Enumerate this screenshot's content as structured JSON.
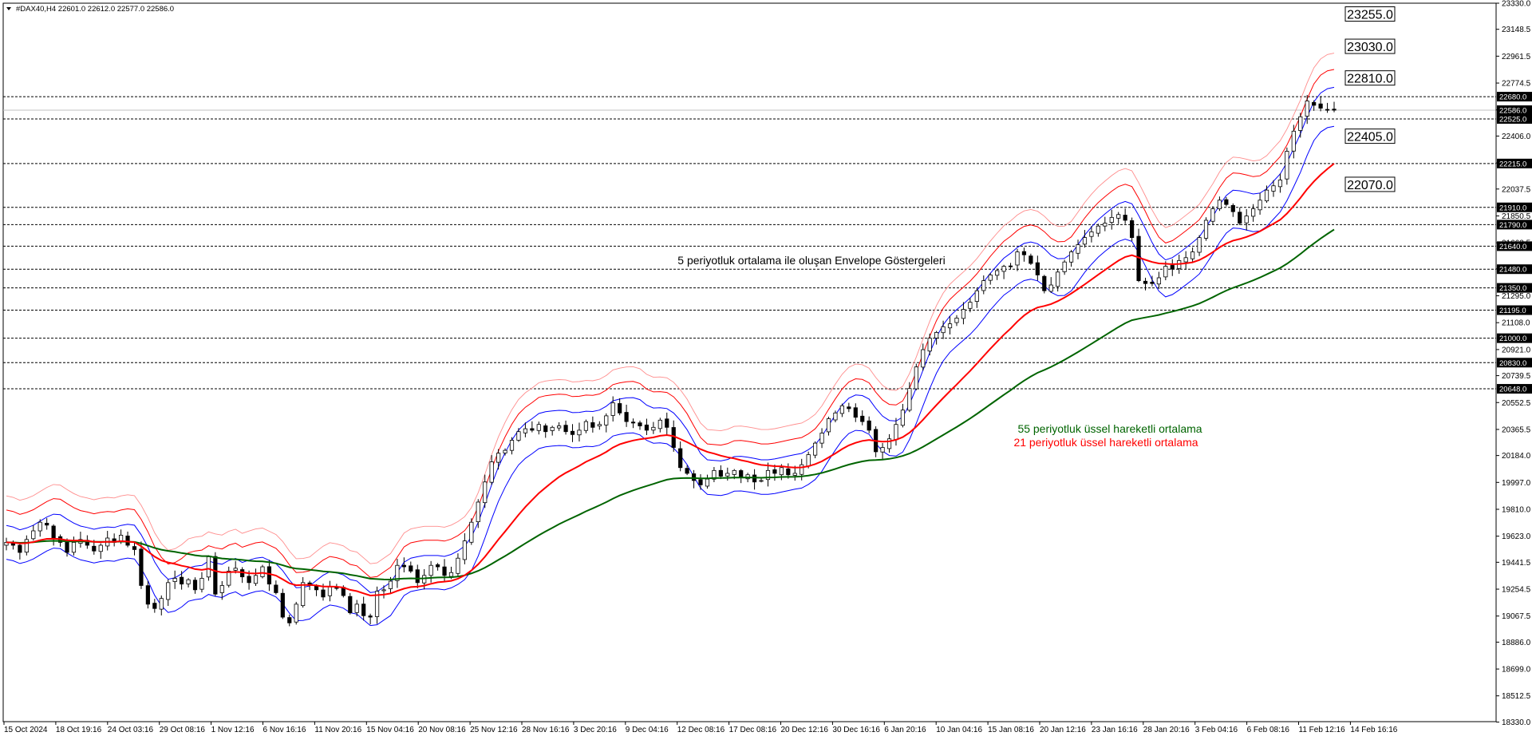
{
  "header": {
    "symbol_line": "#DAX40,H4  22601.0 22612.0 22577.0 22586.0",
    "arrow_icon": "triangle-down-icon"
  },
  "annotations": {
    "envelope": "5 periyotluk ortalama ile oluşan Envelope Göstergeleri",
    "ema55": "55 periyotluk üssel hareketli ortalama",
    "ema21": "21 periyotluk üssel hareketli ortalama"
  },
  "chart_data": {
    "type": "candlestick",
    "symbol": "#DAX40",
    "timeframe": "H4",
    "ohlc_last": {
      "open": 22601.0,
      "high": 22612.0,
      "low": 22577.0,
      "close": 22586.0
    },
    "ylim": [
      18333.0,
      23330.0
    ],
    "y_ticks": [
      23330.0,
      23148.5,
      22961.5,
      22774.5,
      22587.5,
      22406.0,
      22219.0,
      22037.5,
      21850.5,
      21663.5,
      21482.0,
      21295.0,
      21108.0,
      20921.0,
      20739.5,
      20552.5,
      20365.5,
      20184.0,
      19997.0,
      19810.0,
      19623.0,
      19441.5,
      19254.5,
      19067.5,
      18886.0,
      18699.0,
      18512.5,
      18330.0
    ],
    "x_labels": [
      "15 Oct 2024",
      "18 Oct 19:16",
      "24 Oct 03:16",
      "29 Oct 08:16",
      "1 Nov 12:16",
      "6 Nov 16:16",
      "11 Nov 20:16",
      "15 Nov 04:16",
      "20 Nov 08:16",
      "25 Nov 12:16",
      "28 Nov 16:16",
      "3 Dec 20:16",
      "9 Dec 04:16",
      "12 Dec 08:16",
      "17 Dec 08:16",
      "20 Dec 12:16",
      "30 Dec 16:16",
      "6 Jan 20:16",
      "10 Jan 04:16",
      "15 Jan 08:16",
      "20 Jan 12:16",
      "23 Jan 16:16",
      "28 Jan 20:16",
      "3 Feb 04:16",
      "6 Feb 08:16",
      "11 Feb 12:16",
      "14 Feb 16:16"
    ],
    "horizontal_levels": [
      22680.0,
      22525.0,
      22215.0,
      21910.0,
      21790.0,
      21640.0,
      21480.0,
      21350.0,
      21195.0,
      21000.0,
      20830.0,
      20648.0
    ],
    "current_price": 22586.0,
    "labelled_levels": [
      {
        "label": "23255.0",
        "value": 23255.0,
        "series": "upper_envelope_3"
      },
      {
        "label": "23030.0",
        "value": 23030.0,
        "series": "upper_envelope_2"
      },
      {
        "label": "22810.0",
        "value": 22810.0,
        "series": "upper_envelope_1"
      },
      {
        "label": "22405.0",
        "value": 22405.0,
        "series": "ema21"
      },
      {
        "label": "22070.0",
        "value": 22070.0,
        "series": "ema55"
      }
    ],
    "closes": [
      19580,
      19560,
      19510,
      19600,
      19660,
      19720,
      19700,
      19610,
      19580,
      19510,
      19580,
      19600,
      19560,
      19520,
      19560,
      19610,
      19580,
      19630,
      19560,
      19530,
      19280,
      19150,
      19120,
      19190,
      19300,
      19330,
      19290,
      19320,
      19250,
      19330,
      19480,
      19220,
      19280,
      19380,
      19400,
      19340,
      19300,
      19350,
      19410,
      19290,
      19230,
      19060,
      19020,
      19150,
      19300,
      19280,
      19250,
      19200,
      19270,
      19260,
      19210,
      19090,
      19150,
      19070,
      19060,
      19240,
      19250,
      19310,
      19420,
      19410,
      19380,
      19300,
      19350,
      19420,
      19410,
      19350,
      19370,
      19470,
      19590,
      19720,
      19860,
      20000,
      20140,
      20200,
      20220,
      20290,
      20350,
      20370,
      20360,
      20400,
      20350,
      20380,
      20390,
      20350,
      20330,
      20360,
      20420,
      20380,
      20400,
      20460,
      20550,
      20480,
      20420,
      20410,
      20390,
      20360,
      20380,
      20430,
      20380,
      20240,
      20100,
      20060,
      20010,
      19980,
      20020,
      20080,
      20040,
      20060,
      20080,
      20030,
      20050,
      20000,
      20010,
      20080,
      20060,
      20100,
      20050,
      20060,
      20120,
      20190,
      20270,
      20340,
      20440,
      20480,
      20530,
      20510,
      20450,
      20420,
      20360,
      20210,
      20240,
      20300,
      20400,
      20500,
      20650,
      20800,
      20920,
      21000,
      21040,
      21080,
      21100,
      21140,
      21200,
      21250,
      21330,
      21400,
      21440,
      21470,
      21500,
      21500,
      21600,
      21580,
      21520,
      21440,
      21330,
      21370,
      21460,
      21530,
      21600,
      21650,
      21700,
      21740,
      21780,
      21800,
      21840,
      21860,
      21820,
      21700,
      21400,
      21380,
      21380,
      21420,
      21500,
      21480,
      21540,
      21560,
      21600,
      21700,
      21820,
      21900,
      21960,
      21930,
      21880,
      21800,
      21850,
      21900,
      21960,
      22030,
      22060,
      22100,
      22300,
      22440,
      22540,
      22650,
      22620,
      22600,
      22590,
      22586
    ],
    "series": [
      {
        "name": "55 periyotluk üssel hareketli ortalama",
        "color": "#006400",
        "period": 55,
        "method": "EMA"
      },
      {
        "name": "21 periyotluk üssel hareketli ortalama",
        "color": "#ff0000",
        "period": 21,
        "method": "EMA"
      },
      {
        "name": "Envelope (5) inner band",
        "color": "#0000ff",
        "period": 5,
        "role": "envelope-inner"
      },
      {
        "name": "Envelope (5) middle band",
        "color": "#ff0000",
        "period": 5,
        "role": "envelope-middle"
      },
      {
        "name": "Envelope (5) outer band",
        "color": "#ff8c8c",
        "period": 5,
        "role": "envelope-outer"
      }
    ],
    "grid": false
  },
  "colors": {
    "background": "#ffffff",
    "candle_up": "#ffffff",
    "candle_down": "#000000",
    "ema21": "#ff0000",
    "ema55": "#006400",
    "envelope_inner": "#0000ff",
    "envelope_middle": "#ff0000",
    "envelope_outer": "#ff8c8c",
    "level_line": "#000000",
    "current_price_line": "#c0c0c0"
  }
}
